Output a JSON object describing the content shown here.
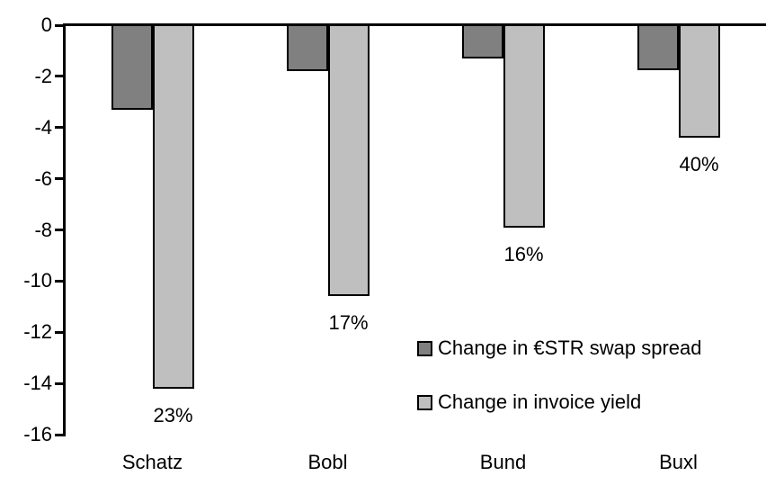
{
  "chart_data": {
    "type": "bar",
    "categories": [
      "Schatz",
      "Bobl",
      "Bund",
      "Buxl"
    ],
    "series": [
      {
        "name": "Change in €STR swap spread",
        "color": "#808080",
        "values": [
          -3.3,
          -1.8,
          -1.3,
          -1.75
        ]
      },
      {
        "name": "Change in invoice yield",
        "color": "#bfbfbf",
        "values": [
          -14.2,
          -10.6,
          -7.9,
          -4.4
        ],
        "point_labels": [
          "23%",
          "17%",
          "16%",
          "40%"
        ]
      }
    ],
    "ylim": [
      -16,
      0
    ],
    "yticks": [
      0,
      -2,
      -4,
      -6,
      -8,
      -10,
      -12,
      -14,
      -16
    ],
    "grid": false,
    "legend_position": "inside-center-right",
    "axis_color": "#000000",
    "background": "#ffffff"
  }
}
